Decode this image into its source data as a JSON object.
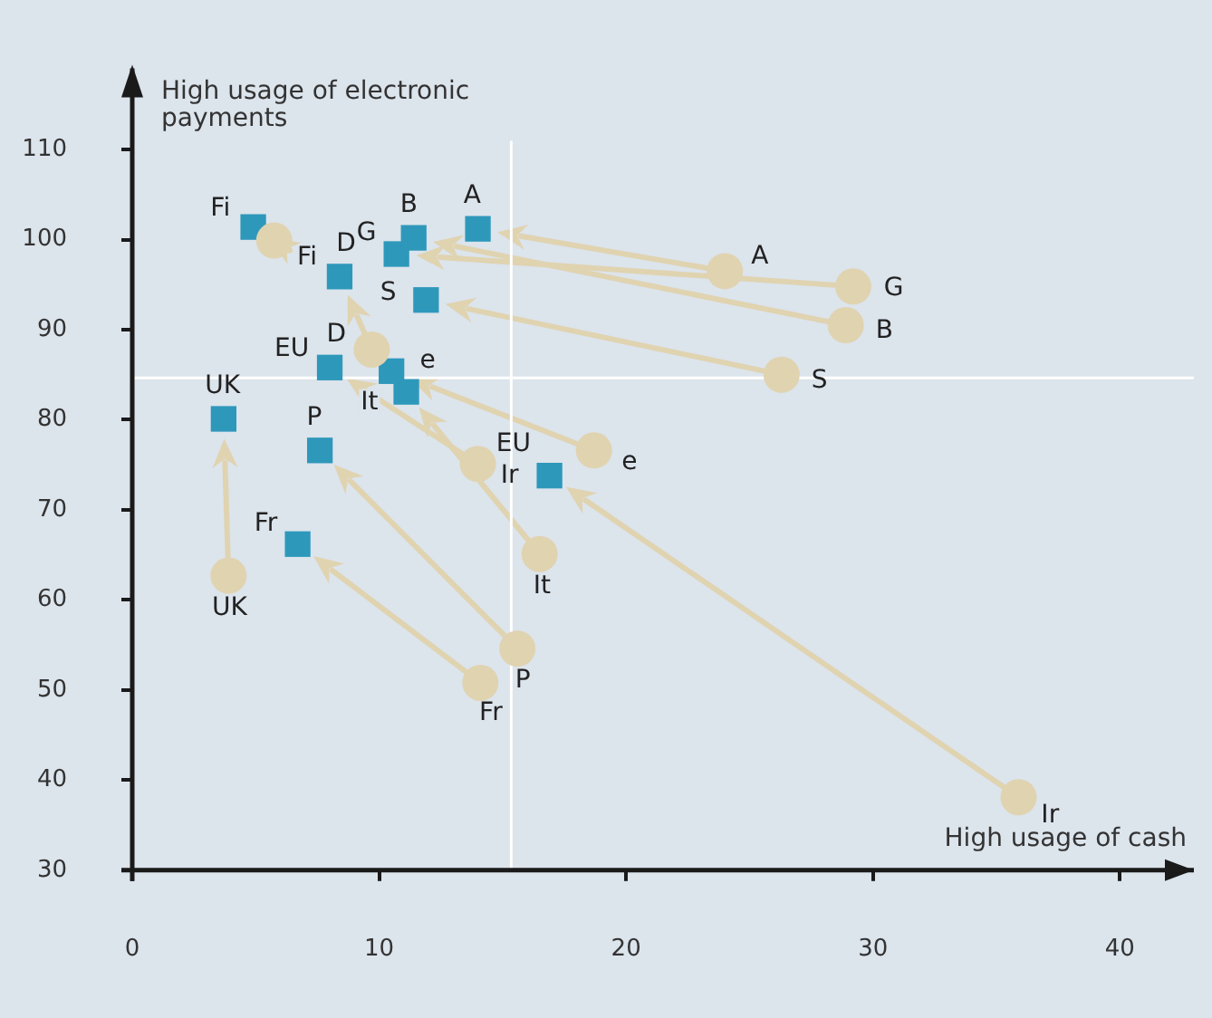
{
  "chart_data": {
    "type": "scatter",
    "xlabel": "High usage of cash",
    "ylabel": "High usage of electronic payments",
    "xlim": [
      0,
      43
    ],
    "ylim": [
      30,
      119
    ],
    "xticks": [
      0,
      10,
      20,
      30,
      40
    ],
    "yticks": [
      30,
      40,
      50,
      60,
      70,
      80,
      90,
      100,
      110
    ],
    "grid": false,
    "legend": false,
    "series": [
      {
        "color": "#e0d3b0",
        "marker": "circle",
        "x": [
          5.75,
          24.0,
          29.2,
          28.9,
          26.3,
          9.7,
          18.7,
          14.0,
          16.5,
          3.9,
          15.6,
          14.1,
          35.9
        ],
        "values": [
          99.9,
          96.5,
          94.8,
          90.5,
          85.0,
          87.8,
          76.6,
          75.1,
          65.1,
          62.7,
          54.6,
          50.8,
          38.1
        ]
      },
      {
        "color": "#2e98bb",
        "marker": "square",
        "x": [
          4.9,
          14.0,
          10.7,
          11.4,
          11.9,
          8.4,
          10.5,
          8.0,
          11.1,
          3.7,
          7.6,
          6.7,
          16.9
        ],
        "values": [
          101.4,
          101.2,
          98.4,
          100.2,
          93.3,
          95.9,
          85.4,
          85.8,
          83.1,
          80.1,
          76.6,
          66.2,
          73.8
        ]
      }
    ],
    "ref_lines": [
      {
        "axis": "x",
        "value": 15.35,
        "color": "#ffffff"
      },
      {
        "axis": "y",
        "value": 84.65,
        "color": "#ffffff"
      }
    ],
    "annotations": [
      {
        "text": "Fi",
        "x": 5.75,
        "y": 99.9
      },
      {
        "text": "A",
        "x": 24.0,
        "y": 96.5
      },
      {
        "text": "G",
        "x": 29.2,
        "y": 94.8
      },
      {
        "text": "B",
        "x": 28.9,
        "y": 90.5
      },
      {
        "text": "S",
        "x": 26.3,
        "y": 85.0
      },
      {
        "text": "D",
        "x": 9.7,
        "y": 87.8
      },
      {
        "text": "e",
        "x": 18.7,
        "y": 76.6
      },
      {
        "text": "EU",
        "x": 14.0,
        "y": 75.1
      },
      {
        "text": "It",
        "x": 16.5,
        "y": 65.1
      },
      {
        "text": "UK",
        "x": 3.9,
        "y": 62.7
      },
      {
        "text": "P",
        "x": 15.6,
        "y": 54.6
      },
      {
        "text": "Fr",
        "x": 14.1,
        "y": 50.8
      },
      {
        "text": "Ir",
        "x": 35.9,
        "y": 38.1
      },
      {
        "text": "Fi",
        "x": 4.9,
        "y": 101.4
      },
      {
        "text": "A",
        "x": 14.0,
        "y": 101.2
      },
      {
        "text": "G",
        "x": 10.7,
        "y": 98.4
      },
      {
        "text": "B",
        "x": 11.4,
        "y": 100.2
      },
      {
        "text": "S",
        "x": 11.9,
        "y": 93.3
      },
      {
        "text": "D",
        "x": 8.4,
        "y": 95.9
      },
      {
        "text": "e",
        "x": 10.5,
        "y": 85.4
      },
      {
        "text": "EU",
        "x": 8.0,
        "y": 85.8
      },
      {
        "text": "It",
        "x": 11.1,
        "y": 83.1
      },
      {
        "text": "UK",
        "x": 3.7,
        "y": 80.1
      },
      {
        "text": "P",
        "x": 7.6,
        "y": 76.6
      },
      {
        "text": "Fr",
        "x": 6.7,
        "y": 66.2
      },
      {
        "text": "Ir",
        "x": 16.9,
        "y": 73.8
      }
    ]
  }
}
